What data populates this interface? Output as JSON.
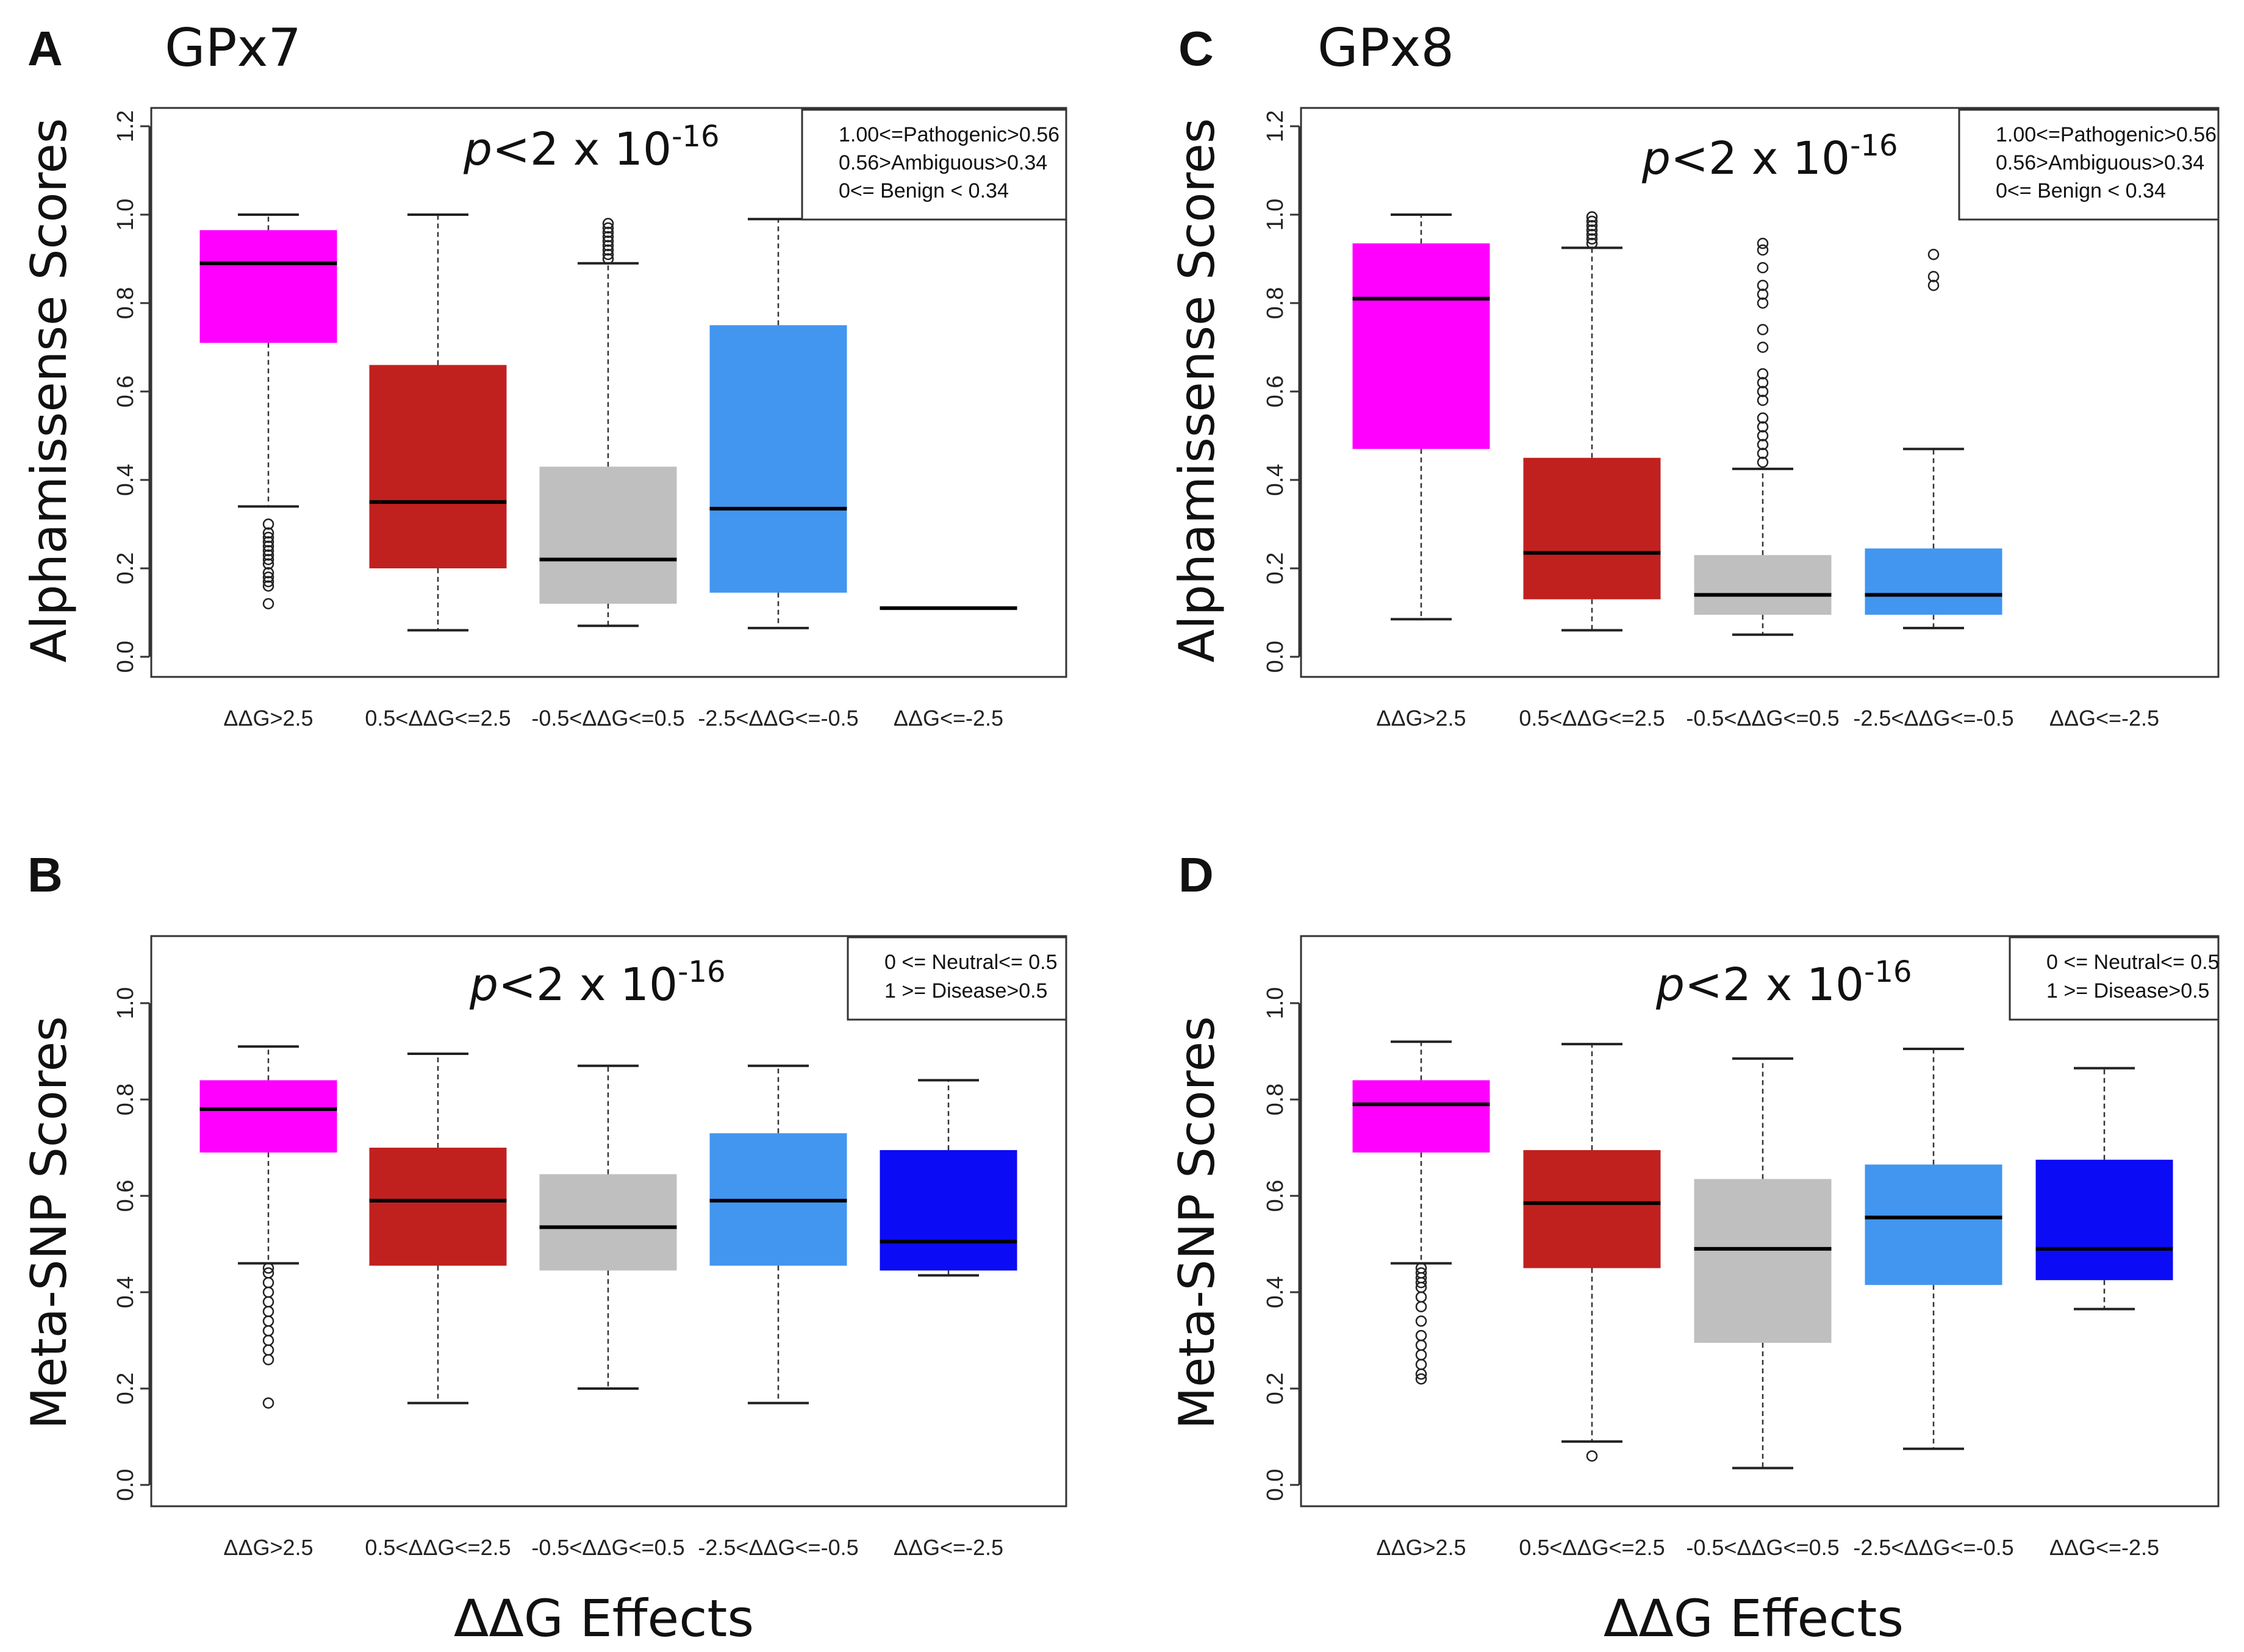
{
  "figure": {
    "x_title": "ΔΔG Effects"
  },
  "chart_data": [
    {
      "id": "A",
      "letter": "A",
      "title": "GPx7",
      "type": "boxplot",
      "ylabel": "Alphamissense Scores",
      "ylim": [
        0,
        1.2
      ],
      "yticks": [
        "0.0",
        "0.2",
        "0.4",
        "0.6",
        "0.8",
        "1.0",
        "1.2"
      ],
      "categories": [
        "ΔΔG>2.5",
        "0.5<ΔΔG<=2.5",
        "-0.5<ΔΔG<=0.5",
        "-2.5<ΔΔG<=-0.5",
        "ΔΔG<=-2.5"
      ],
      "annotation": {
        "prefix": "p",
        "text": "<2 x 10",
        "exp": "-16"
      },
      "legend": [
        "1.00<=Pathogenic>0.56",
        "0.56>Ambiguous>0.34",
        "0<= Benign < 0.34"
      ],
      "boxes": [
        {
          "color": "#ff00ff",
          "whisker_low": 0.34,
          "q1": 0.71,
          "median": 0.89,
          "q3": 0.965,
          "whisker_high": 1.0,
          "outliers": [
            0.12,
            0.16,
            0.17,
            0.18,
            0.19,
            0.21,
            0.22,
            0.23,
            0.24,
            0.25,
            0.26,
            0.27,
            0.28,
            0.3
          ]
        },
        {
          "color": "#c0211f",
          "whisker_low": 0.06,
          "q1": 0.2,
          "median": 0.35,
          "q3": 0.66,
          "whisker_high": 1.0,
          "outliers": []
        },
        {
          "color": "#bfbfbf",
          "whisker_low": 0.07,
          "q1": 0.12,
          "median": 0.22,
          "q3": 0.43,
          "whisker_high": 0.89,
          "outliers": [
            0.9,
            0.91,
            0.92,
            0.93,
            0.94,
            0.95,
            0.96,
            0.97,
            0.98
          ]
        },
        {
          "color": "#4296f0",
          "whisker_low": 0.065,
          "q1": 0.145,
          "median": 0.335,
          "q3": 0.75,
          "whisker_high": 0.99,
          "outliers": []
        },
        {
          "color": "#1010f0",
          "whisker_low": 0.11,
          "q1": 0.11,
          "median": 0.11,
          "q3": 0.11,
          "whisker_high": 0.11,
          "outliers": []
        }
      ]
    },
    {
      "id": "C",
      "letter": "C",
      "title": "GPx8",
      "type": "boxplot",
      "ylabel": "Alphamissense Scores",
      "ylim": [
        0,
        1.2
      ],
      "yticks": [
        "0.0",
        "0.2",
        "0.4",
        "0.6",
        "0.8",
        "1.0",
        "1.2"
      ],
      "categories": [
        "ΔΔG>2.5",
        "0.5<ΔΔG<=2.5",
        "-0.5<ΔΔG<=0.5",
        "-2.5<ΔΔG<=-0.5",
        "ΔΔG<=-2.5"
      ],
      "annotation": {
        "prefix": "p",
        "text": "<2 x 10",
        "exp": "-16"
      },
      "legend": [
        "1.00<=Pathogenic>0.56",
        "0.56>Ambiguous>0.34",
        "0<= Benign < 0.34"
      ],
      "boxes": [
        {
          "color": "#ff00ff",
          "whisker_low": 0.085,
          "q1": 0.47,
          "median": 0.81,
          "q3": 0.935,
          "whisker_high": 1.0,
          "outliers": []
        },
        {
          "color": "#c0211f",
          "whisker_low": 0.06,
          "q1": 0.13,
          "median": 0.235,
          "q3": 0.45,
          "whisker_high": 0.925,
          "outliers": [
            0.935,
            0.945,
            0.955,
            0.965,
            0.975,
            0.985,
            0.995
          ]
        },
        {
          "color": "#bfbfbf",
          "whisker_low": 0.05,
          "q1": 0.095,
          "median": 0.14,
          "q3": 0.23,
          "whisker_high": 0.425,
          "outliers": [
            0.44,
            0.46,
            0.48,
            0.5,
            0.52,
            0.54,
            0.58,
            0.6,
            0.62,
            0.64,
            0.7,
            0.74,
            0.8,
            0.82,
            0.84,
            0.88,
            0.92,
            0.935
          ]
        },
        {
          "color": "#4296f0",
          "whisker_low": 0.065,
          "q1": 0.095,
          "median": 0.14,
          "q3": 0.245,
          "whisker_high": 0.47,
          "outliers": [
            0.84,
            0.86,
            0.91
          ]
        },
        null
      ]
    },
    {
      "id": "B",
      "letter": "B",
      "title": "",
      "type": "boxplot",
      "ylabel": "Meta-SNP Scores",
      "ylim": [
        0,
        1.1
      ],
      "yticks": [
        "0.0",
        "0.2",
        "0.4",
        "0.6",
        "0.8",
        "1.0"
      ],
      "categories": [
        "ΔΔG>2.5",
        "0.5<ΔΔG<=2.5",
        "-0.5<ΔΔG<=0.5",
        "-2.5<ΔΔG<=-0.5",
        "ΔΔG<=-2.5"
      ],
      "annotation": {
        "prefix": "p",
        "text": "<2 x 10",
        "exp": "-16"
      },
      "legend": [
        "0 <= Neutral<= 0.5",
        "1 >= Disease>0.5"
      ],
      "boxes": [
        {
          "color": "#ff00ff",
          "whisker_low": 0.46,
          "q1": 0.69,
          "median": 0.78,
          "q3": 0.84,
          "whisker_high": 0.91,
          "outliers": [
            0.17,
            0.26,
            0.28,
            0.3,
            0.32,
            0.34,
            0.36,
            0.38,
            0.4,
            0.42,
            0.44,
            0.45
          ]
        },
        {
          "color": "#c0211f",
          "whisker_low": 0.17,
          "q1": 0.455,
          "median": 0.59,
          "q3": 0.7,
          "whisker_high": 0.895,
          "outliers": []
        },
        {
          "color": "#bfbfbf",
          "whisker_low": 0.2,
          "q1": 0.445,
          "median": 0.535,
          "q3": 0.645,
          "whisker_high": 0.87,
          "outliers": []
        },
        {
          "color": "#4296f0",
          "whisker_low": 0.17,
          "q1": 0.455,
          "median": 0.59,
          "q3": 0.73,
          "whisker_high": 0.87,
          "outliers": []
        },
        {
          "color": "#0b0bf5",
          "whisker_low": 0.435,
          "q1": 0.445,
          "median": 0.505,
          "q3": 0.695,
          "whisker_high": 0.84,
          "outliers": []
        }
      ]
    },
    {
      "id": "D",
      "letter": "D",
      "title": "",
      "type": "boxplot",
      "ylabel": "Meta-SNP Scores",
      "ylim": [
        0,
        1.1
      ],
      "yticks": [
        "0.0",
        "0.2",
        "0.4",
        "0.6",
        "0.8",
        "1.0"
      ],
      "categories": [
        "ΔΔG>2.5",
        "0.5<ΔΔG<=2.5",
        "-0.5<ΔΔG<=0.5",
        "-2.5<ΔΔG<=-0.5",
        "ΔΔG<=-2.5"
      ],
      "annotation": {
        "prefix": "p",
        "text": "<2 x 10",
        "exp": "-16"
      },
      "legend": [
        "0 <= Neutral<= 0.5",
        "1 >= Disease>0.5"
      ],
      "boxes": [
        {
          "color": "#ff00ff",
          "whisker_low": 0.46,
          "q1": 0.69,
          "median": 0.79,
          "q3": 0.84,
          "whisker_high": 0.92,
          "outliers": [
            0.22,
            0.23,
            0.25,
            0.27,
            0.29,
            0.31,
            0.34,
            0.37,
            0.39,
            0.41,
            0.42,
            0.43,
            0.44,
            0.45
          ]
        },
        {
          "color": "#c0211f",
          "whisker_low": 0.09,
          "q1": 0.45,
          "median": 0.585,
          "q3": 0.695,
          "whisker_high": 0.915,
          "outliers": [
            0.06
          ]
        },
        {
          "color": "#bfbfbf",
          "whisker_low": 0.035,
          "q1": 0.295,
          "median": 0.49,
          "q3": 0.635,
          "whisker_high": 0.885,
          "outliers": []
        },
        {
          "color": "#4296f0",
          "whisker_low": 0.075,
          "q1": 0.415,
          "median": 0.555,
          "q3": 0.665,
          "whisker_high": 0.905,
          "outliers": []
        },
        {
          "color": "#0b0bf5",
          "whisker_low": 0.365,
          "q1": 0.425,
          "median": 0.49,
          "q3": 0.675,
          "whisker_high": 0.865,
          "outliers": []
        }
      ]
    }
  ]
}
